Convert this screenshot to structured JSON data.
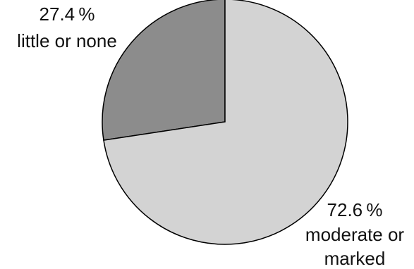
{
  "chart_data": {
    "type": "pie",
    "title": "",
    "slices": [
      {
        "label": "little or none",
        "value": 27.4,
        "value_text": "27.4 %",
        "color": "#8c8c8c"
      },
      {
        "label": "moderate or marked",
        "value": 72.6,
        "value_text": "72.6 %",
        "label_lines": [
          "moderate or",
          "marked"
        ],
        "color": "#d3d3d3"
      }
    ],
    "edge_color": "#000000"
  }
}
